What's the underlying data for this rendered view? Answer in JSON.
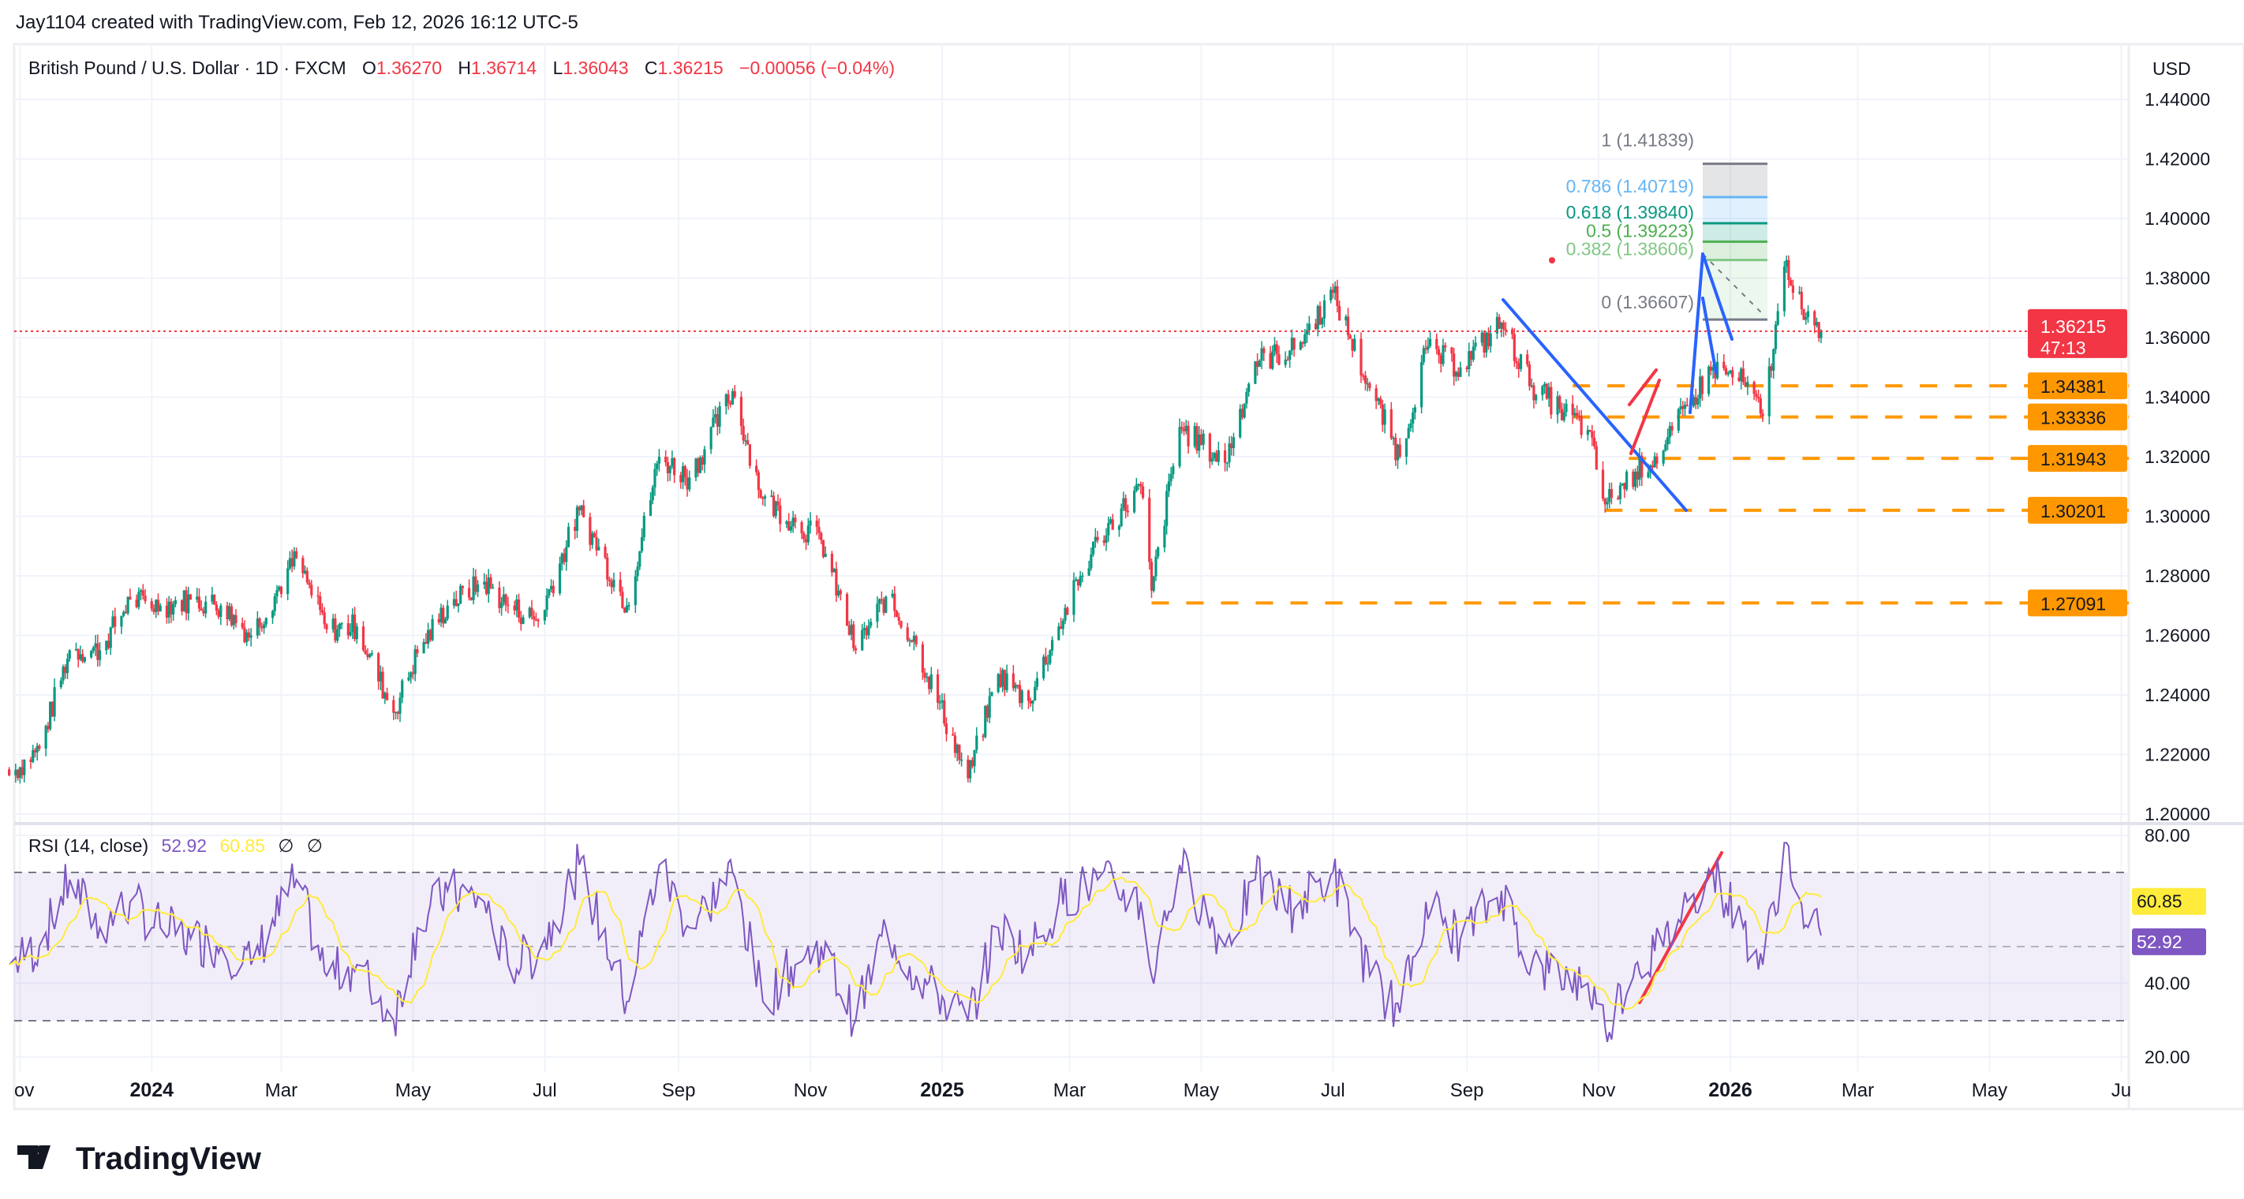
{
  "attribution": "Jay1104 created with TradingView.com, Feb 12, 2026 16:12 UTC-5",
  "legend": {
    "symbol": "British Pound / U.S. Dollar · 1D · FXCM",
    "o_label": "O",
    "o": "1.36270",
    "h_label": "H",
    "h": "1.36714",
    "l_label": "L",
    "l": "1.36043",
    "c_label": "C",
    "c": "1.36215",
    "change": "−0.00056 (−0.04%)"
  },
  "currency": "USD",
  "price_axis_ticks": [
    "1.44000",
    "1.42000",
    "1.40000",
    "1.38000",
    "1.36000",
    "1.34000",
    "1.32000",
    "1.30000",
    "1.28000",
    "1.26000",
    "1.24000",
    "1.22000",
    "1.20000"
  ],
  "current_price": {
    "value": "1.36215",
    "countdown": "47:13"
  },
  "levels": [
    "1.34381",
    "1.33336",
    "1.31943",
    "1.30201",
    "1.27091"
  ],
  "fib": [
    {
      "label": "1 (1.41839)",
      "color": "#787b86"
    },
    {
      "label": "0.786 (1.40719)",
      "color": "#64b5f6"
    },
    {
      "label": "0.618 (1.39840)",
      "color": "#089981"
    },
    {
      "label": "0.5 (1.39223)",
      "color": "#4caf50"
    },
    {
      "label": "0.382 (1.38606)",
      "color": "#81c784"
    },
    {
      "label": "0 (1.36607)",
      "color": "#787b86"
    }
  ],
  "rsi": {
    "title": "RSI (14, close)",
    "value": "52.92",
    "ma_value": "60.85",
    "na1": "∅",
    "na2": "∅",
    "ticks": [
      "80.00",
      "40.00",
      "20.00"
    ]
  },
  "time_axis": [
    "ov",
    "2024",
    "Mar",
    "May",
    "Jul",
    "Sep",
    "Nov",
    "2025",
    "Mar",
    "May",
    "Jul",
    "Sep",
    "Nov",
    "2026",
    "Mar",
    "May",
    "Ju"
  ],
  "logo": "TradingView",
  "colors": {
    "up": "#089981",
    "down": "#f23645",
    "level": "#ff9800",
    "trend": "#2962ff",
    "rsi": "#7e57c2",
    "rsi_ma": "#ffeb3b"
  },
  "chart_data": {
    "type": "candlestick",
    "title": "British Pound / U.S. Dollar · 1D · FXCM",
    "ylim": [
      1.2,
      1.44
    ],
    "rsi_ylim": [
      20,
      80
    ],
    "rsi_bands": [
      30,
      50,
      70
    ],
    "grid": true,
    "approx_closes": [
      [
        "2023-10-27",
        1.213,
        45
      ],
      [
        "2023-11-10",
        1.222,
        50
      ],
      [
        "2023-11-24",
        1.255,
        68
      ],
      [
        "2023-12-08",
        1.255,
        55
      ],
      [
        "2023-12-22",
        1.272,
        62
      ],
      [
        "2024-01-05",
        1.27,
        55
      ],
      [
        "2024-01-19",
        1.272,
        52
      ],
      [
        "2024-02-02",
        1.27,
        50
      ],
      [
        "2024-02-16",
        1.26,
        45
      ],
      [
        "2024-03-08",
        1.286,
        68
      ],
      [
        "2024-03-22",
        1.262,
        42
      ],
      [
        "2024-04-05",
        1.263,
        45
      ],
      [
        "2024-04-22",
        1.234,
        30
      ],
      [
        "2024-05-03",
        1.254,
        55
      ],
      [
        "2024-05-17",
        1.27,
        65
      ],
      [
        "2024-06-03",
        1.278,
        62
      ],
      [
        "2024-06-14",
        1.27,
        45
      ],
      [
        "2024-06-28",
        1.265,
        48
      ],
      [
        "2024-07-17",
        1.302,
        72
      ],
      [
        "2024-08-08",
        1.27,
        35
      ],
      [
        "2024-08-23",
        1.32,
        72
      ],
      [
        "2024-09-06",
        1.313,
        55
      ],
      [
        "2024-09-26",
        1.342,
        70
      ],
      [
        "2024-10-10",
        1.306,
        35
      ],
      [
        "2024-10-25",
        1.298,
        45
      ],
      [
        "2024-11-06",
        1.292,
        50
      ],
      [
        "2024-11-22",
        1.255,
        30
      ],
      [
        "2024-12-06",
        1.273,
        55
      ],
      [
        "2024-12-20",
        1.257,
        42
      ],
      [
        "2025-01-13",
        1.212,
        30
      ],
      [
        "2025-01-27",
        1.247,
        55
      ],
      [
        "2025-02-10",
        1.238,
        48
      ],
      [
        "2025-02-24",
        1.263,
        62
      ],
      [
        "2025-03-14",
        1.292,
        68
      ],
      [
        "2025-04-03",
        1.31,
        62
      ],
      [
        "2025-04-08",
        1.275,
        42
      ],
      [
        "2025-04-21",
        1.33,
        72
      ],
      [
        "2025-05-12",
        1.318,
        50
      ],
      [
        "2025-05-26",
        1.352,
        68
      ],
      [
        "2025-06-13",
        1.356,
        60
      ],
      [
        "2025-07-01",
        1.375,
        70
      ],
      [
        "2025-07-18",
        1.343,
        42
      ],
      [
        "2025-08-01",
        1.32,
        32
      ],
      [
        "2025-08-13",
        1.356,
        62
      ],
      [
        "2025-08-29",
        1.35,
        52
      ],
      [
        "2025-09-17",
        1.365,
        65
      ],
      [
        "2025-10-01",
        1.344,
        45
      ],
      [
        "2025-10-14",
        1.336,
        42
      ],
      [
        "2025-10-27",
        1.329,
        40
      ],
      [
        "2025-11-04",
        1.304,
        28
      ],
      [
        "2025-11-18",
        1.315,
        45
      ],
      [
        "2025-12-01",
        1.322,
        50
      ],
      [
        "2025-12-12",
        1.337,
        62
      ],
      [
        "2025-12-24",
        1.35,
        70
      ],
      [
        "2026-01-07",
        1.345,
        55
      ],
      [
        "2026-01-16",
        1.3336,
        45
      ],
      [
        "2026-01-27",
        1.386,
        78
      ],
      [
        "2026-02-04",
        1.366,
        55
      ],
      [
        "2026-02-12",
        1.36215,
        52.92
      ]
    ],
    "horizontal_levels": [
      {
        "value": 1.34381,
        "from": "2025-10-20"
      },
      {
        "value": 1.33336,
        "from": "2025-10-20"
      },
      {
        "value": 1.31943,
        "from": "2025-11-15"
      },
      {
        "value": 1.30201,
        "from": "2025-11-04"
      },
      {
        "value": 1.27091,
        "from": "2025-04-08"
      }
    ],
    "fib_retracement": {
      "from": 1.36607,
      "to": 1.41839,
      "levels": [
        1,
        0.786,
        0.618,
        0.5,
        0.382,
        0
      ]
    }
  }
}
